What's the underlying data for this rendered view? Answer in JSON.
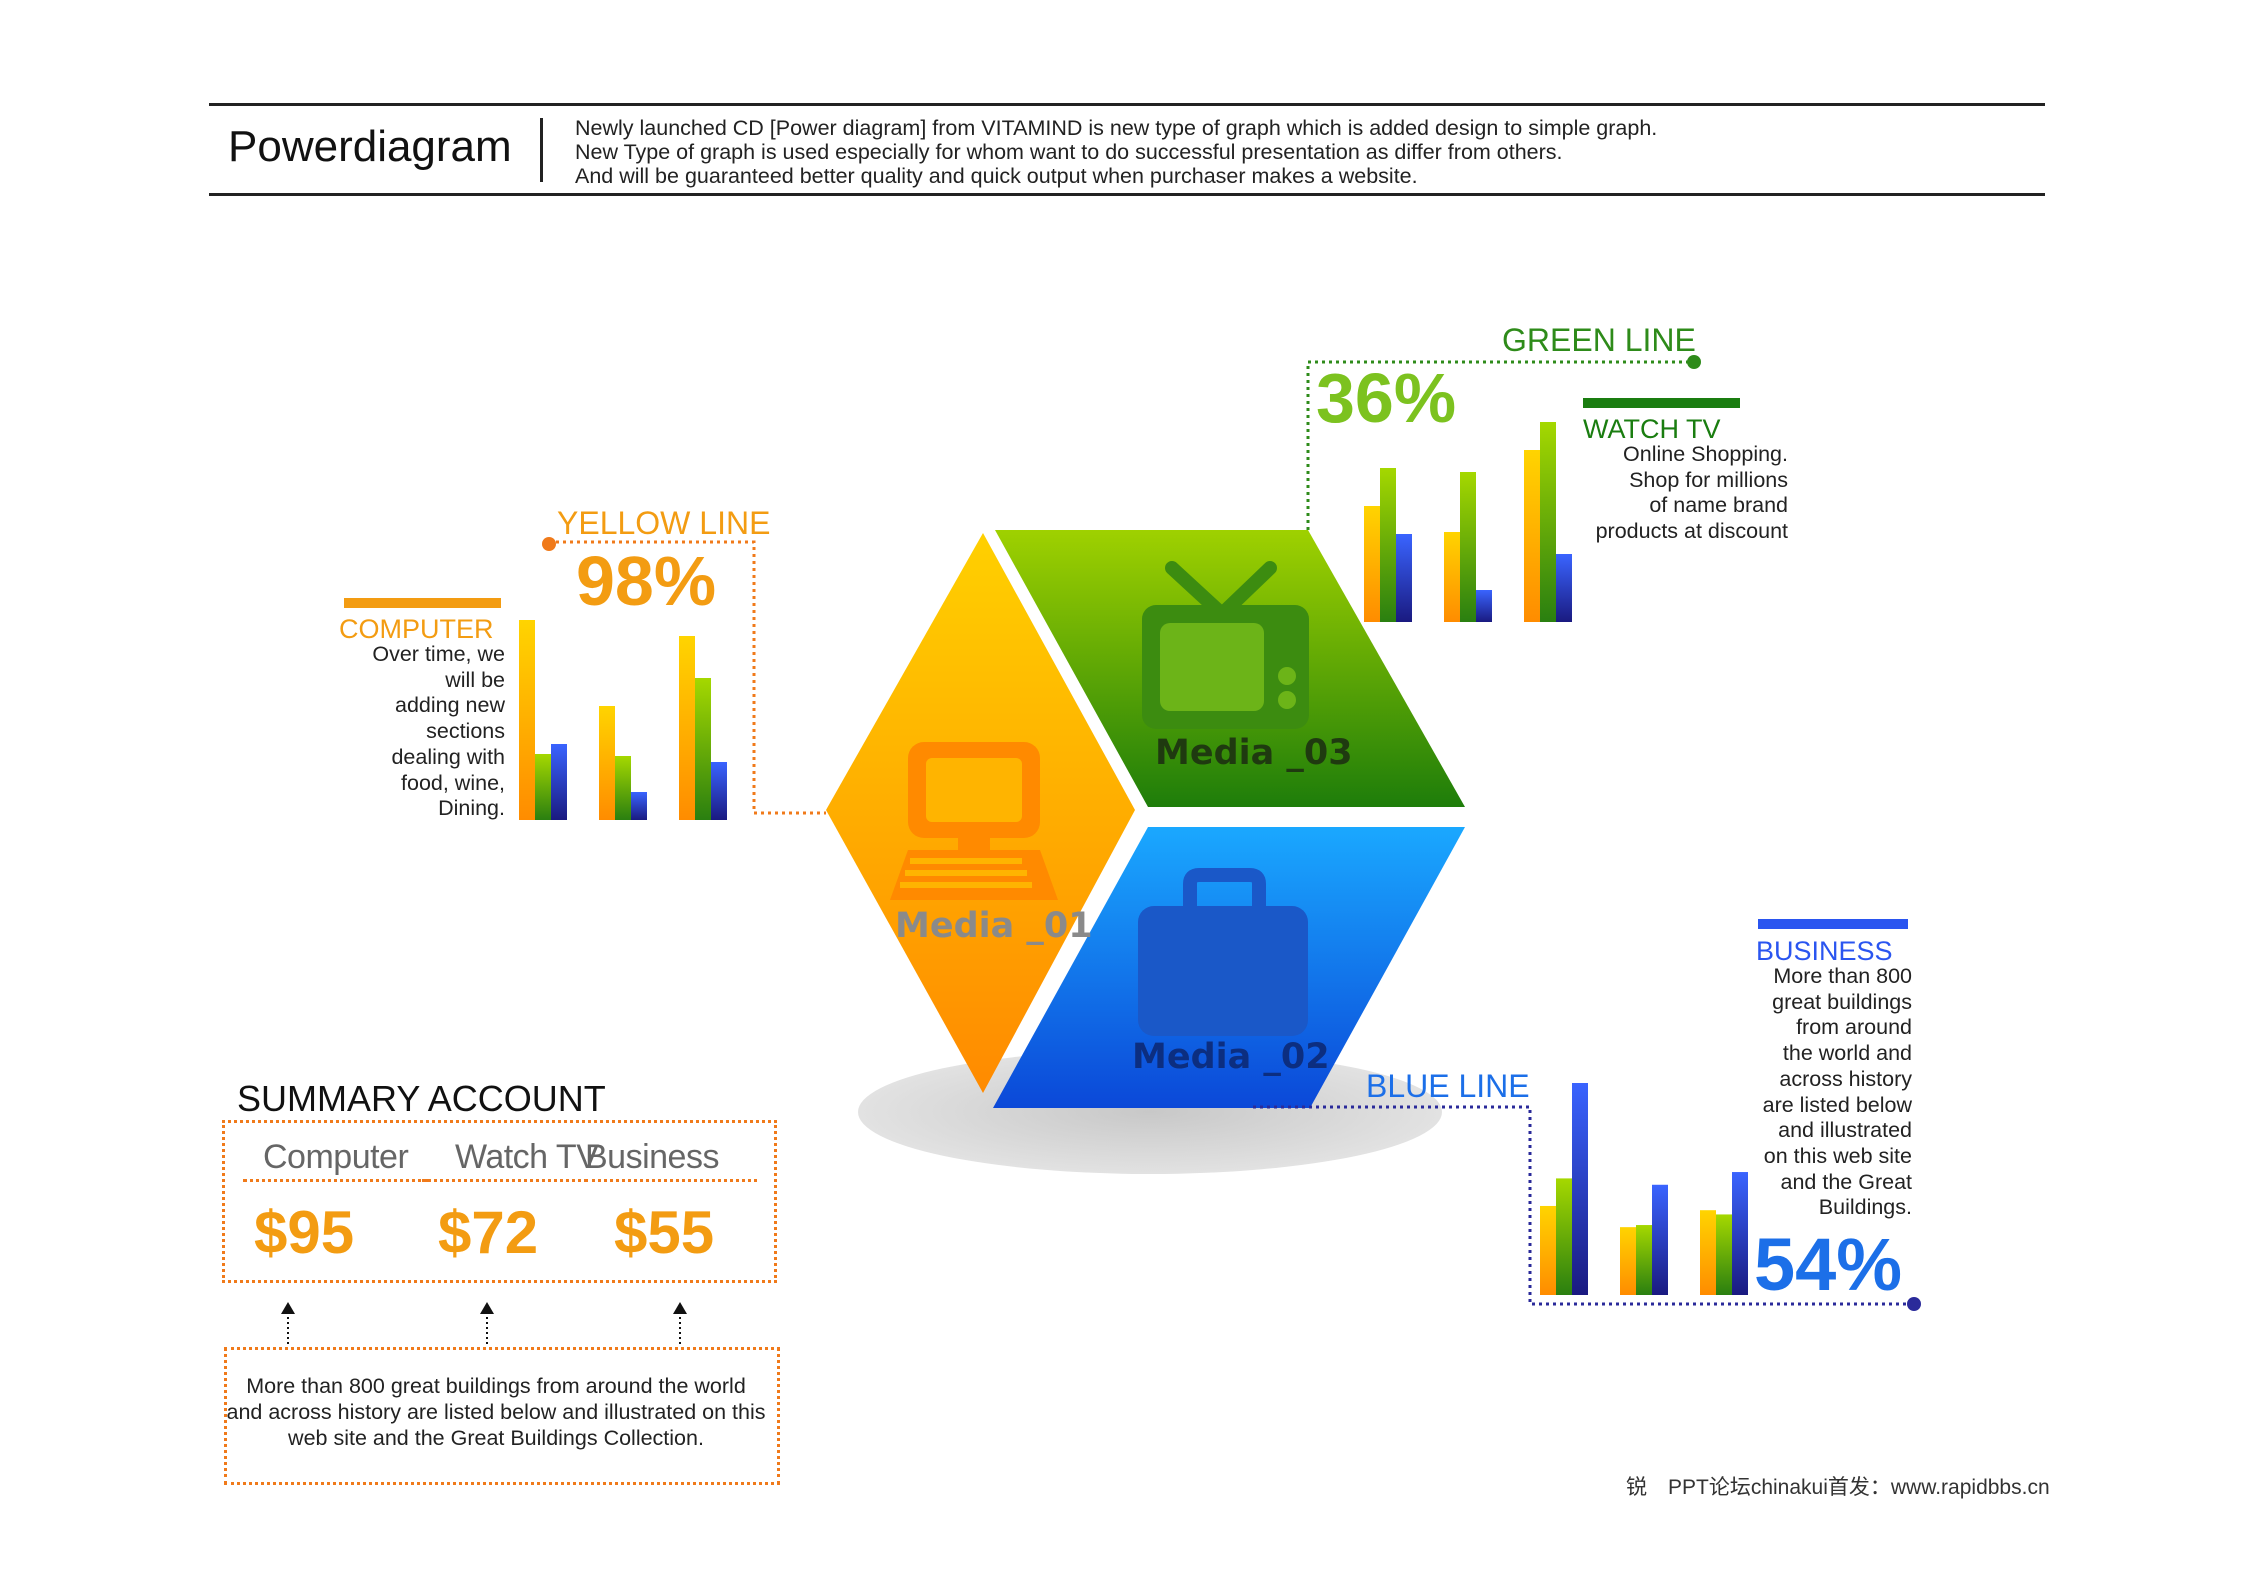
{
  "header": {
    "title": "Powerdiagram",
    "description": [
      "Newly launched CD [Power diagram] from VITAMIND is new type of graph which is added design to simple graph.",
      "New Type of graph is used especially for whom want to do successful presentation as differ from others.",
      "And will be guaranteed better quality and quick output when purchaser makes a website."
    ]
  },
  "colors": {
    "yellow": "#f39c12",
    "orange_dot": "#f07a1a",
    "green": "#2e8b1a",
    "green_pct": "#7cc21f",
    "blue": "#1c6fe8",
    "navy": "#2a2a9a"
  },
  "yellow": {
    "line_label": "YELLOW LINE",
    "percent": "98%",
    "category": "COMPUTER",
    "description": [
      "Over time, we",
      "will be",
      "adding new",
      "sections",
      "dealing with",
      "food, wine,",
      "Dining."
    ],
    "chart": {
      "groups": [
        {
          "orange": 100,
          "green": 33,
          "blue": 38
        },
        {
          "orange": 57,
          "green": 32,
          "blue": 14
        },
        {
          "orange": 92,
          "green": 71,
          "blue": 29
        }
      ]
    }
  },
  "green": {
    "line_label": "GREEN LINE",
    "percent": "36%",
    "category": "WATCH TV",
    "description": [
      "Online Shopping.",
      "Shop for millions",
      "of name brand",
      "products at discount"
    ],
    "chart": {
      "groups": [
        {
          "orange": 58,
          "green": 77,
          "blue": 44
        },
        {
          "orange": 45,
          "green": 75,
          "blue": 16
        },
        {
          "orange": 86,
          "green": 100,
          "blue": 34
        }
      ]
    }
  },
  "blue": {
    "line_label": "BLUE LINE",
    "percent": "54%",
    "category": "BUSINESS",
    "description": [
      "More than 800",
      "great buildings",
      "from around",
      "the world and",
      "across history",
      "are listed below",
      "and illustrated",
      "on this web site",
      "and the Great",
      "Buildings."
    ],
    "chart": {
      "groups": [
        {
          "orange": 42,
          "green": 55,
          "blue": 100
        },
        {
          "orange": 32,
          "green": 33,
          "blue": 52
        },
        {
          "orange": 40,
          "green": 38,
          "blue": 58
        }
      ]
    }
  },
  "media": {
    "m1": "Media _01",
    "m2": "Media _02",
    "m3": "Media _03",
    "icons": [
      "computer-icon",
      "briefcase-icon",
      "tv-icon"
    ]
  },
  "summary": {
    "title": "SUMMARY ACCOUNT",
    "labels": [
      "Computer",
      "Watch TV",
      "Business"
    ],
    "values": [
      "$95",
      "$72",
      "$55"
    ],
    "note": "More than 800 great buildings from around the world and across history are listed below and illustrated on this web site and the Great Buildings Collection."
  },
  "footer": "锐　PPT论坛chinakui首发：www.rapidbbs.cn"
}
